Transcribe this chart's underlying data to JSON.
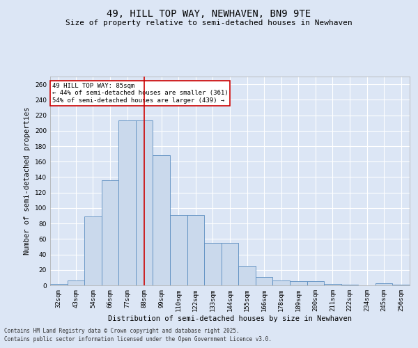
{
  "title": "49, HILL TOP WAY, NEWHAVEN, BN9 9TE",
  "subtitle": "Size of property relative to semi-detached houses in Newhaven",
  "xlabel": "Distribution of semi-detached houses by size in Newhaven",
  "ylabel": "Number of semi-detached properties",
  "categories": [
    "32sqm",
    "43sqm",
    "54sqm",
    "66sqm",
    "77sqm",
    "88sqm",
    "99sqm",
    "110sqm",
    "122sqm",
    "133sqm",
    "144sqm",
    "155sqm",
    "166sqm",
    "178sqm",
    "189sqm",
    "200sqm",
    "211sqm",
    "222sqm",
    "234sqm",
    "245sqm",
    "256sqm"
  ],
  "values": [
    2,
    6,
    89,
    136,
    213,
    213,
    168,
    91,
    91,
    55,
    55,
    25,
    11,
    6,
    5,
    5,
    2,
    1,
    0,
    3,
    1
  ],
  "bar_color": "#cad9ec",
  "bar_edge_color": "#5b8dc0",
  "vline_color": "#cc0000",
  "vline_index": 5,
  "ylim": [
    0,
    270
  ],
  "yticks": [
    0,
    20,
    40,
    60,
    80,
    100,
    120,
    140,
    160,
    180,
    200,
    220,
    240,
    260
  ],
  "annotation_title": "49 HILL TOP WAY: 85sqm",
  "annotation_line1": "← 44% of semi-detached houses are smaller (361)",
  "annotation_line2": "54% of semi-detached houses are larger (439) →",
  "annotation_box_color": "#ffffff",
  "annotation_box_edge": "#cc0000",
  "footer1": "Contains HM Land Registry data © Crown copyright and database right 2025.",
  "footer2": "Contains public sector information licensed under the Open Government Licence v3.0.",
  "background_color": "#dce6f5",
  "plot_background": "#dce6f5",
  "grid_color": "#ffffff",
  "title_fontsize": 10,
  "subtitle_fontsize": 8,
  "tick_fontsize": 6.5,
  "label_fontsize": 7.5
}
